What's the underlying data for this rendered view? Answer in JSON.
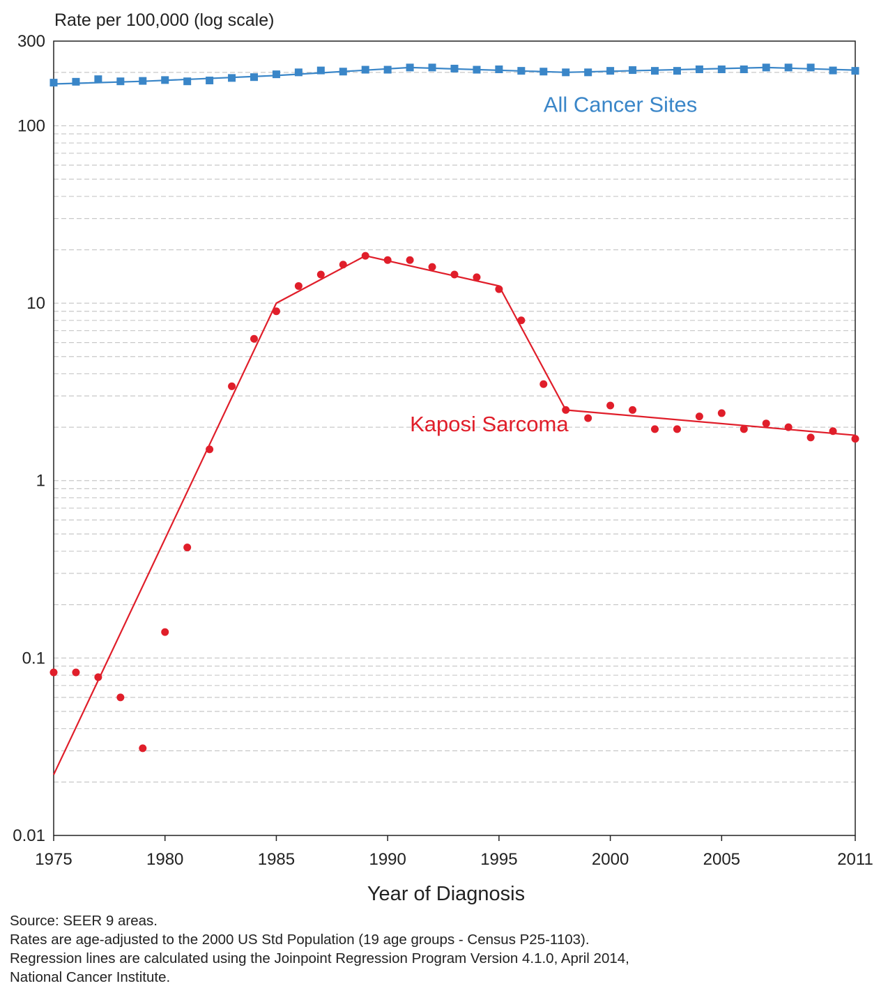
{
  "chart_data": {
    "type": "scatter",
    "ylabel": "Rate per 100,000 (log scale)",
    "xlabel": "Year of Diagnosis",
    "y_scale": "log",
    "ylim": [
      0.01,
      300
    ],
    "xlim": [
      1975,
      2011
    ],
    "y_ticks": [
      {
        "value": 300,
        "label": "300"
      },
      {
        "value": 100,
        "label": "100"
      },
      {
        "value": 10,
        "label": "10"
      },
      {
        "value": 1,
        "label": "1"
      },
      {
        "value": 0.1,
        "label": "0.1"
      },
      {
        "value": 0.01,
        "label": "0.01"
      }
    ],
    "x_ticks": [
      {
        "value": 1975,
        "label": "1975"
      },
      {
        "value": 1980,
        "label": "1980"
      },
      {
        "value": 1985,
        "label": "1985"
      },
      {
        "value": 1990,
        "label": "1990"
      },
      {
        "value": 1995,
        "label": "1995"
      },
      {
        "value": 2000,
        "label": "2000"
      },
      {
        "value": 2005,
        "label": "2005"
      },
      {
        "value": 2011,
        "label": "2011"
      }
    ],
    "grid": "dashed horizontal minor gridlines",
    "series": [
      {
        "name": "All Cancer Sites",
        "color": "#3a86c8",
        "marker": "square",
        "label_position": [
          1997,
          120
        ],
        "x": [
          1975,
          1976,
          1977,
          1978,
          1979,
          1980,
          1981,
          1982,
          1983,
          1984,
          1985,
          1986,
          1987,
          1988,
          1989,
          1990,
          1991,
          1992,
          1993,
          1994,
          1995,
          1996,
          1997,
          1998,
          1999,
          2000,
          2001,
          2002,
          2003,
          2004,
          2005,
          2006,
          2007,
          2008,
          2009,
          2010,
          2011
        ],
        "y": [
          175,
          177,
          183,
          178,
          179,
          181,
          178,
          180,
          186,
          188,
          195,
          200,
          205,
          202,
          207,
          207,
          213,
          213,
          210,
          207,
          208,
          204,
          202,
          200,
          200,
          204,
          206,
          204,
          204,
          208,
          208,
          208,
          213,
          213,
          213,
          205,
          204
        ],
        "regression": {
          "x": [
            1975,
            1979,
            1985,
            1991,
            1998,
            2007,
            2011
          ],
          "y": [
            172,
            178,
            192,
            213,
            200,
            213,
            206
          ]
        }
      },
      {
        "name": "Kaposi Sarcoma",
        "color": "#e01e2a",
        "marker": "circle",
        "label_position": [
          1991,
          1.9
        ],
        "x": [
          1975,
          1976,
          1977,
          1978,
          1979,
          1980,
          1981,
          1982,
          1983,
          1984,
          1985,
          1986,
          1987,
          1988,
          1989,
          1990,
          1991,
          1992,
          1993,
          1994,
          1995,
          1996,
          1997,
          1998,
          1999,
          2000,
          2001,
          2002,
          2003,
          2004,
          2005,
          2006,
          2007,
          2008,
          2009,
          2010,
          2011
        ],
        "y": [
          0.083,
          0.083,
          0.078,
          0.06,
          0.031,
          0.14,
          0.42,
          1.5,
          3.4,
          6.3,
          9,
          12.5,
          14.5,
          16.5,
          18.5,
          17.5,
          17.5,
          16,
          14.5,
          14,
          12,
          8,
          3.5,
          2.5,
          2.25,
          2.65,
          2.5,
          1.95,
          1.95,
          2.3,
          2.4,
          1.95,
          2.1,
          2.0,
          1.75,
          1.9,
          1.72
        ],
        "regression": {
          "x": [
            1975,
            1985,
            1989,
            1995,
            1998,
            2011
          ],
          "y": [
            0.022,
            10,
            18.5,
            12.5,
            2.5,
            1.8
          ]
        }
      }
    ]
  },
  "notes": {
    "line1": "Source: SEER 9 areas.",
    "line2": "Rates are age-adjusted to the 2000 US Std Population (19 age groups - Census P25-1103).",
    "line3": "Regression lines are calculated using the Joinpoint Regression Program Version 4.1.0, April 2014,",
    "line4": "National Cancer Institute."
  }
}
